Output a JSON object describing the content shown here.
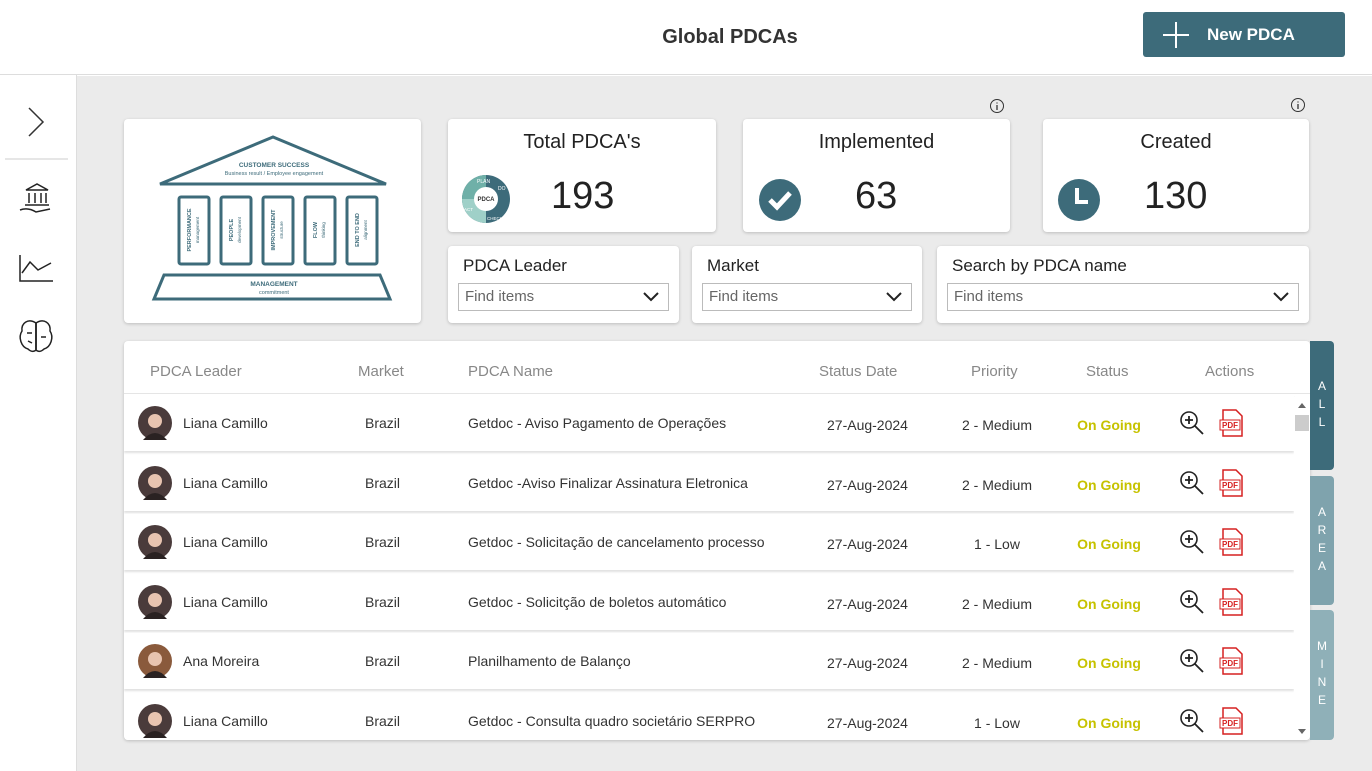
{
  "header": {
    "title": "Global PDCAs",
    "new_button": "New PDCA"
  },
  "house": {
    "roof_title": "CUSTOMER SUCCESS",
    "roof_subtitle": "Business result / Employee engagement",
    "pillars": [
      [
        "PERFORMANCE",
        "management"
      ],
      [
        "PEOPLE",
        "development"
      ],
      [
        "IMPROVEMENT",
        "structure"
      ],
      [
        "FLOW",
        "thinking"
      ],
      [
        "END TO END",
        "alignment"
      ]
    ],
    "base_title": "MANAGEMENT",
    "base_subtitle": "commitment"
  },
  "pdca_icon": {
    "center": "PDCA",
    "plan": "PLAN",
    "do": "DO",
    "check": "CHECK",
    "act": "ACT"
  },
  "kpis": [
    {
      "label": "Total PDCA's",
      "value": "193"
    },
    {
      "label": "Implemented",
      "value": "63"
    },
    {
      "label": "Created",
      "value": "130"
    }
  ],
  "filters": [
    {
      "label": "PDCA Leader",
      "placeholder": "Find items"
    },
    {
      "label": "Market",
      "placeholder": "Find items"
    },
    {
      "label": "Search by PDCA name",
      "placeholder": "Find items"
    }
  ],
  "table": {
    "columns": [
      "PDCA Leader",
      "Market",
      "PDCA Name",
      "Status Date",
      "Priority",
      "Status",
      "Actions"
    ],
    "pdf_icon_text": "PDF",
    "rows": [
      [
        "Liana Camillo",
        "Brazil",
        "Getdoc - Aviso Pagamento de Operações",
        "27-Aug-2024",
        "2 - Medium",
        "On Going"
      ],
      [
        "Liana Camillo",
        "Brazil",
        "Getdoc -Aviso Finalizar Assinatura Eletronica",
        "27-Aug-2024",
        "2 - Medium",
        "On Going"
      ],
      [
        "Liana Camillo",
        "Brazil",
        "Getdoc - Solicitação de cancelamento processo",
        "27-Aug-2024",
        "1 - Low",
        "On Going"
      ],
      [
        "Liana Camillo",
        "Brazil",
        "Getdoc - Solicitção de boletos automático",
        "27-Aug-2024",
        "2 - Medium",
        "On Going"
      ],
      [
        "Ana Moreira",
        "Brazil",
        "Planilhamento de Balanço",
        "27-Aug-2024",
        "2 - Medium",
        "On Going"
      ],
      [
        "Liana Camillo",
        "Brazil",
        "Getdoc - Consulta quadro societário SERPRO",
        "27-Aug-2024",
        "1 - Low",
        "On Going"
      ]
    ]
  },
  "tabs": [
    "ALL",
    "AREA",
    "MINE"
  ]
}
